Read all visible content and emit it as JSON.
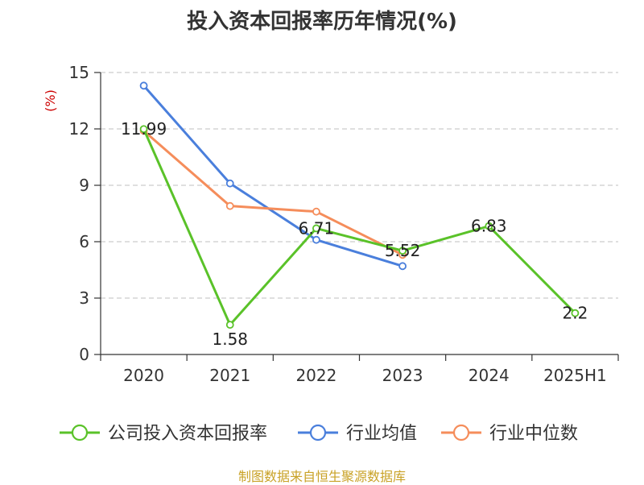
{
  "title": "投入资本回报率历年情况(%)",
  "source": "制图数据来自恒生聚源数据库",
  "chart_data": {
    "type": "line",
    "title": "投入资本回报率历年情况(%)",
    "ylabel": "(%)",
    "xlabel": "",
    "categories": [
      "2020",
      "2021",
      "2022",
      "2023",
      "2024",
      "2025H1"
    ],
    "ylim": [
      0,
      15
    ],
    "yticks": [
      0,
      3,
      6,
      9,
      12,
      15
    ],
    "grid": true,
    "legend_position": "bottom",
    "series": [
      {
        "name": "公司投入资本回报率",
        "color": "#5ac229",
        "values": [
          11.99,
          1.58,
          6.71,
          5.52,
          6.83,
          2.2
        ],
        "data_labels": [
          "11.99",
          "1.58",
          "6.71",
          "5.52",
          "6.83",
          "2.2"
        ]
      },
      {
        "name": "行业均值",
        "color": "#4a7fdc",
        "values": [
          14.3,
          9.1,
          6.1,
          4.7,
          null,
          null
        ]
      },
      {
        "name": "行业中位数",
        "color": "#f58d5b",
        "values": [
          11.9,
          7.9,
          7.6,
          5.3,
          null,
          null
        ]
      }
    ]
  }
}
